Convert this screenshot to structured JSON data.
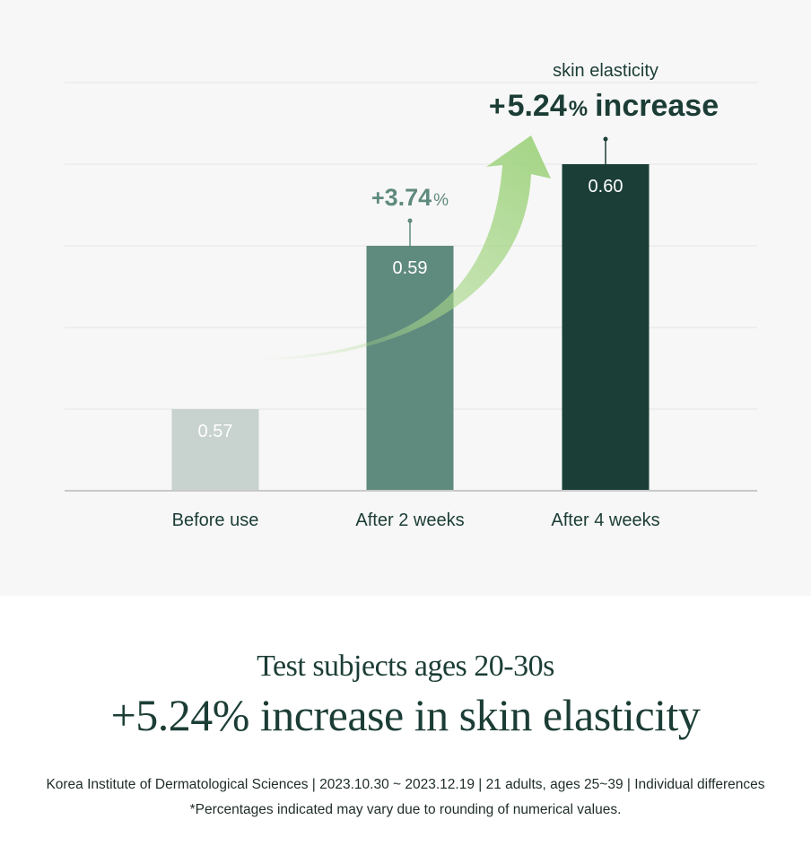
{
  "chart_data": {
    "type": "bar",
    "categories": [
      "Before use",
      "After 2 weeks",
      "After 4 weeks"
    ],
    "values": [
      0.57,
      0.59,
      0.6
    ],
    "value_labels": [
      "0.57",
      "0.59",
      "0.60"
    ],
    "bar_colors": [
      "#c8d2cf",
      "#5f8a7e",
      "#1b3f37"
    ],
    "label_colors": [
      "#ffffff",
      "#ffffff",
      "#ffffff"
    ],
    "error_bars": [
      false,
      true,
      true
    ],
    "ylim": [
      0.56,
      0.605
    ],
    "gridlines": [
      0.57,
      0.58,
      0.59,
      0.6,
      0.61
    ],
    "grid": true,
    "increase_2w": {
      "prefix": "+",
      "value": "3.74",
      "unit": "%"
    },
    "annotation": {
      "title": "skin elasticity",
      "prefix": "+",
      "value": "5.24",
      "unit": "%",
      "suffix": "increase"
    }
  },
  "footer": {
    "headline_1": "Test subjects ages 20-30s",
    "headline_2": "+5.24% increase in skin elasticity",
    "source_note": "Korea Institute of Dermatological Sciences | 2023.10.30 ~ 2023.12.19 | 21 adults, ages 25~39 |  Individual differences",
    "rounding_note": "*Percentages indicated may vary due to rounding of numerical values."
  },
  "colors": {
    "panel_bg": "#f7f7f7",
    "text_dark": "#1b3d35",
    "text_mid": "#5f8a7e",
    "arrow_green": "#a9d88a"
  }
}
